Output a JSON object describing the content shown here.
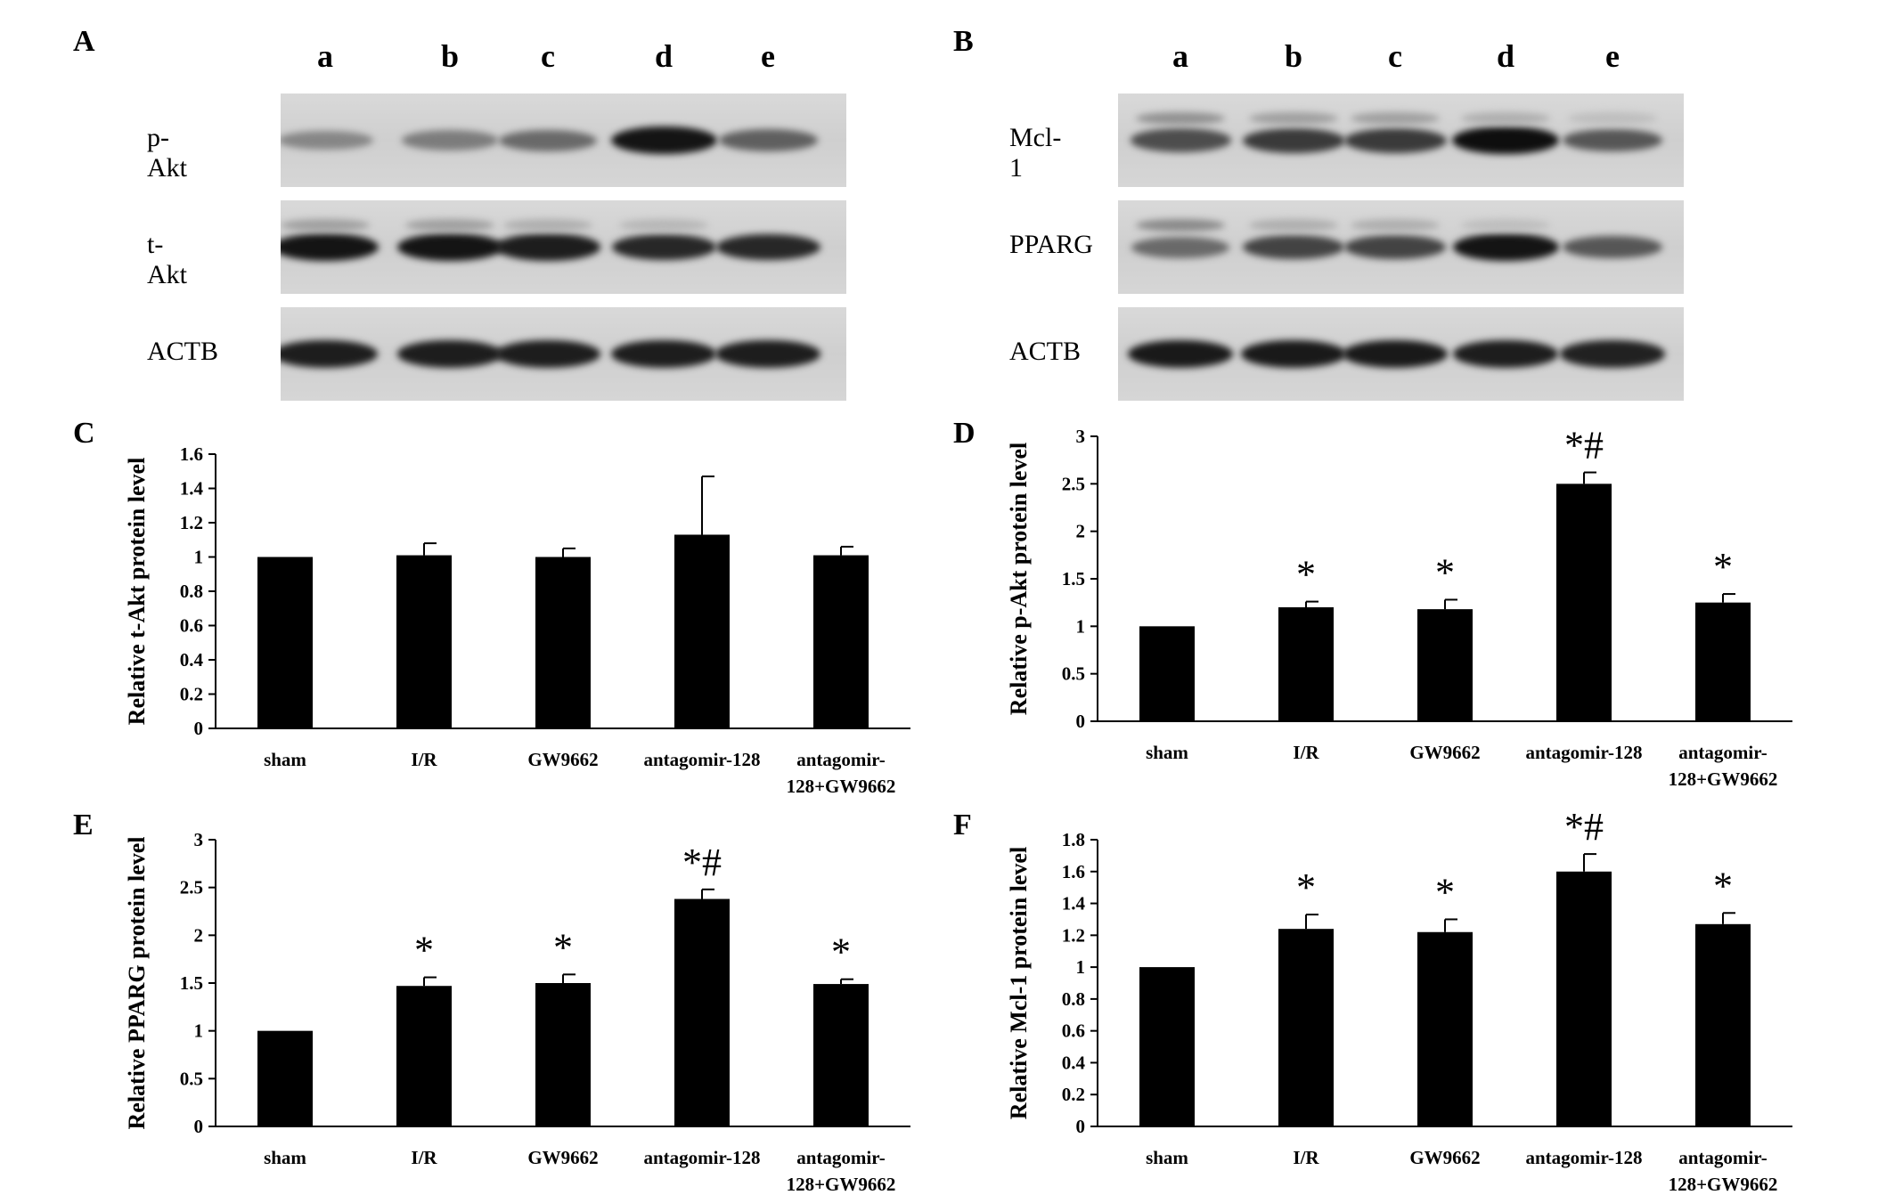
{
  "panels": {
    "A": {
      "letter": "A",
      "lanes": [
        "a",
        "b",
        "c",
        "d",
        "e"
      ],
      "blots": [
        {
          "label": "p-Akt",
          "intensity": [
            0.35,
            0.4,
            0.5,
            0.95,
            0.55
          ],
          "lower_intensity": [
            0,
            0,
            0,
            0,
            0
          ]
        },
        {
          "label": "t-Akt",
          "intensity": [
            0.95,
            0.95,
            0.9,
            0.85,
            0.85
          ],
          "lower_intensity": [
            0.3,
            0.3,
            0.2,
            0.15,
            0
          ]
        },
        {
          "label": "ACTB",
          "intensity": [
            0.9,
            0.9,
            0.9,
            0.9,
            0.9
          ],
          "lower_intensity": [
            0,
            0,
            0,
            0,
            0
          ]
        }
      ]
    },
    "B": {
      "letter": "B",
      "lanes": [
        "a",
        "b",
        "c",
        "d",
        "e"
      ],
      "blots": [
        {
          "label": "Mcl-1",
          "intensity": [
            0.65,
            0.75,
            0.75,
            0.98,
            0.6
          ],
          "lower_intensity": [
            0.4,
            0.3,
            0.3,
            0.2,
            0.1
          ]
        },
        {
          "label": "PPARG",
          "intensity": [
            0.5,
            0.7,
            0.7,
            0.95,
            0.6
          ],
          "lower_intensity": [
            0.45,
            0.2,
            0.2,
            0.1,
            0
          ]
        },
        {
          "label": "ACTB",
          "intensity": [
            0.92,
            0.92,
            0.92,
            0.9,
            0.88
          ],
          "lower_intensity": [
            0,
            0,
            0,
            0,
            0
          ]
        }
      ]
    }
  },
  "chart_data": [
    {
      "panel": "C",
      "type": "bar",
      "categories": [
        "sham",
        "I/R",
        "GW9662",
        "antagomir-128",
        "antagomir-128+GW9662"
      ],
      "category_lines": [
        [
          "sham"
        ],
        [
          "I/R"
        ],
        [
          "GW9662"
        ],
        [
          "antagomir-128"
        ],
        [
          "antagomir-",
          "128+GW9662"
        ]
      ],
      "values": [
        1.0,
        1.01,
        1.0,
        1.13,
        1.01
      ],
      "errors": [
        0.0,
        0.07,
        0.05,
        0.34,
        0.05
      ],
      "annotations": [
        "",
        "",
        "",
        "",
        ""
      ],
      "ylabel": "Relative t-Akt protein level",
      "ylim": [
        0,
        1.6
      ],
      "yticks": [
        "0",
        "0.2",
        "0.4",
        "0.6",
        "0.8",
        "1",
        "1.2",
        "1.4",
        "1.6"
      ],
      "ytick_values": [
        0,
        0.2,
        0.4,
        0.6,
        0.8,
        1.0,
        1.2,
        1.4,
        1.6
      ]
    },
    {
      "panel": "D",
      "type": "bar",
      "categories": [
        "sham",
        "I/R",
        "GW9662",
        "antagomir-128",
        "antagomir-128+GW9662"
      ],
      "category_lines": [
        [
          "sham"
        ],
        [
          "I/R"
        ],
        [
          "GW9662"
        ],
        [
          "antagomir-128"
        ],
        [
          "antagomir-",
          "128+GW9662"
        ]
      ],
      "values": [
        1.0,
        1.2,
        1.18,
        2.5,
        1.25
      ],
      "errors": [
        0.0,
        0.06,
        0.1,
        0.12,
        0.09
      ],
      "annotations": [
        "",
        "*",
        "*",
        "*#",
        "*"
      ],
      "ylabel": "Relative p-Akt protein level",
      "ylim": [
        0,
        3
      ],
      "yticks": [
        "0",
        "0.5",
        "1",
        "1.5",
        "2",
        "2.5",
        "3"
      ],
      "ytick_values": [
        0,
        0.5,
        1,
        1.5,
        2,
        2.5,
        3
      ]
    },
    {
      "panel": "E",
      "type": "bar",
      "categories": [
        "sham",
        "I/R",
        "GW9662",
        "antagomir-128",
        "antagomir-128+GW9662"
      ],
      "category_lines": [
        [
          "sham"
        ],
        [
          "I/R"
        ],
        [
          "GW9662"
        ],
        [
          "antagomir-128"
        ],
        [
          "antagomir-",
          "128+GW9662"
        ]
      ],
      "values": [
        1.0,
        1.47,
        1.5,
        2.38,
        1.49
      ],
      "errors": [
        0.0,
        0.09,
        0.09,
        0.1,
        0.05
      ],
      "annotations": [
        "",
        "*",
        "*",
        "*#",
        "*"
      ],
      "ylabel": "Relative PPARG protein level",
      "ylim": [
        0,
        3
      ],
      "yticks": [
        "0",
        "0.5",
        "1",
        "1.5",
        "2",
        "2.5",
        "3"
      ],
      "ytick_values": [
        0,
        0.5,
        1,
        1.5,
        2,
        2.5,
        3
      ]
    },
    {
      "panel": "F",
      "type": "bar",
      "categories": [
        "sham",
        "I/R",
        "GW9662",
        "antagomir-128",
        "antagomir-128+GW9662"
      ],
      "category_lines": [
        [
          "sham"
        ],
        [
          "I/R"
        ],
        [
          "GW9662"
        ],
        [
          "antagomir-128"
        ],
        [
          "antagomir-",
          "128+GW9662"
        ]
      ],
      "values": [
        1.0,
        1.24,
        1.22,
        1.6,
        1.27
      ],
      "errors": [
        0.0,
        0.09,
        0.08,
        0.11,
        0.07
      ],
      "annotations": [
        "",
        "*",
        "*",
        "*#",
        "*"
      ],
      "ylabel": "Relative Mcl-1 protein level",
      "ylim": [
        0,
        1.8
      ],
      "yticks": [
        "0",
        "0.2",
        "0.4",
        "0.6",
        "0.8",
        "1",
        "1.2",
        "1.4",
        "1.6",
        "1.8"
      ],
      "ytick_values": [
        0,
        0.2,
        0.4,
        0.6,
        0.8,
        1.0,
        1.2,
        1.4,
        1.6,
        1.8
      ]
    }
  ],
  "chart_letters": [
    "C",
    "D",
    "E",
    "F"
  ]
}
